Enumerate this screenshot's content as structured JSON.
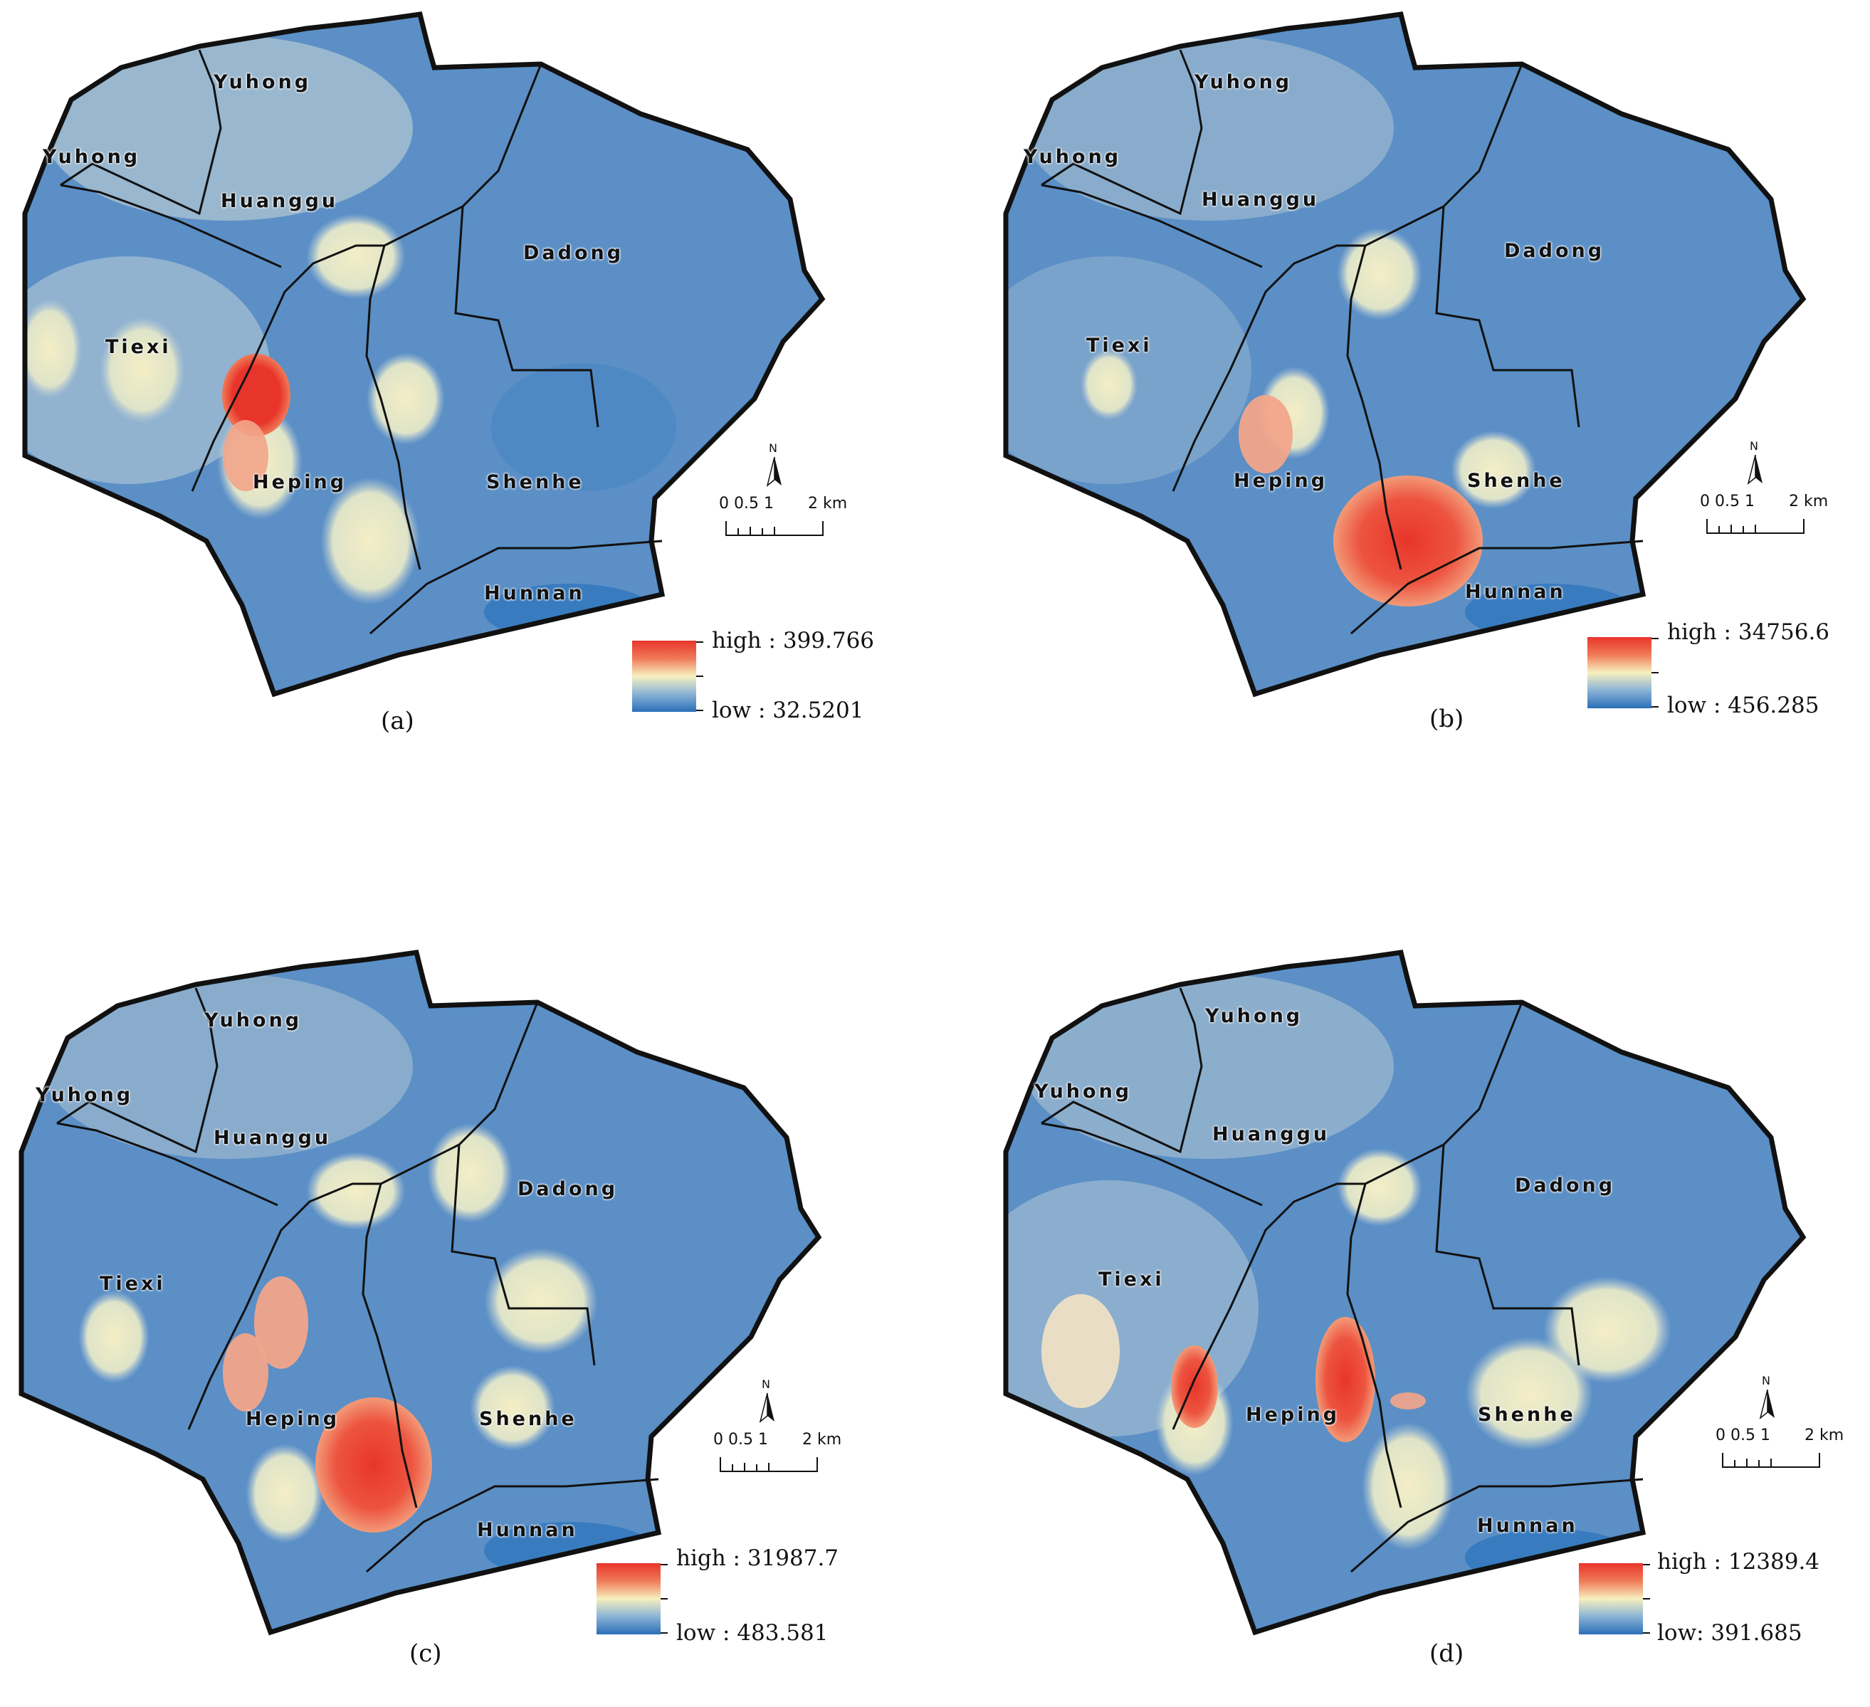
{
  "figure": {
    "panels": [
      {
        "id": "a",
        "caption": "(a)",
        "legend": {
          "high": "high : 399.766",
          "low": "low : 32.5201"
        },
        "scale": {
          "ticks": "0 0.5 1",
          "unit": "2 km"
        },
        "north": "N",
        "labels": {
          "yuhong_top": "Yuhong",
          "yuhong_left": "Yuhong",
          "huanggu": "Huanggu",
          "dadong": "Dadong",
          "tiexi": "Tiexi",
          "heping": "Heping",
          "shenhe": "Shenhe",
          "hunnan": "Hunnan"
        }
      },
      {
        "id": "b",
        "caption": "(b)",
        "legend": {
          "high": "high : 34756.6",
          "low": "low : 456.285"
        },
        "scale": {
          "ticks": "0 0.5 1",
          "unit": "2 km"
        },
        "north": "N",
        "labels": {
          "yuhong_top": "Yuhong",
          "yuhong_left": "Yuhong",
          "huanggu": "Huanggu",
          "dadong": "Dadong",
          "tiexi": "Tiexi",
          "heping": "Heping",
          "shenhe": "Shenhe",
          "hunnan": "Hunnan"
        }
      },
      {
        "id": "c",
        "caption": "(c)",
        "legend": {
          "high": "high : 31987.7",
          "low": "low : 483.581"
        },
        "scale": {
          "ticks": "0 0.5 1",
          "unit": "2 km"
        },
        "north": "N",
        "labels": {
          "yuhong_top": "Yuhong",
          "yuhong_left": "Yuhong",
          "huanggu": "Huanggu",
          "dadong": "Dadong",
          "tiexi": "Tiexi",
          "heping": "Heping",
          "shenhe": "Shenhe",
          "hunnan": "Hunnan"
        }
      },
      {
        "id": "d",
        "caption": "(d)",
        "legend": {
          "high": "high : 12389.4",
          "low": "low: 391.685"
        },
        "scale": {
          "ticks": "0 0.5 1",
          "unit": "2 km"
        },
        "north": "N",
        "labels": {
          "yuhong_top": "Yuhong",
          "yuhong_left": "Yuhong",
          "huanggu": "Huanggu",
          "dadong": "Dadong",
          "tiexi": "Tiexi",
          "heping": "Heping",
          "shenhe": "Shenhe",
          "hunnan": "Hunnan"
        }
      }
    ],
    "colors": {
      "high": "#e8352b",
      "mid": "#f7f0bf",
      "low": "#2a6fb8",
      "base": "#5b8fc6"
    }
  }
}
